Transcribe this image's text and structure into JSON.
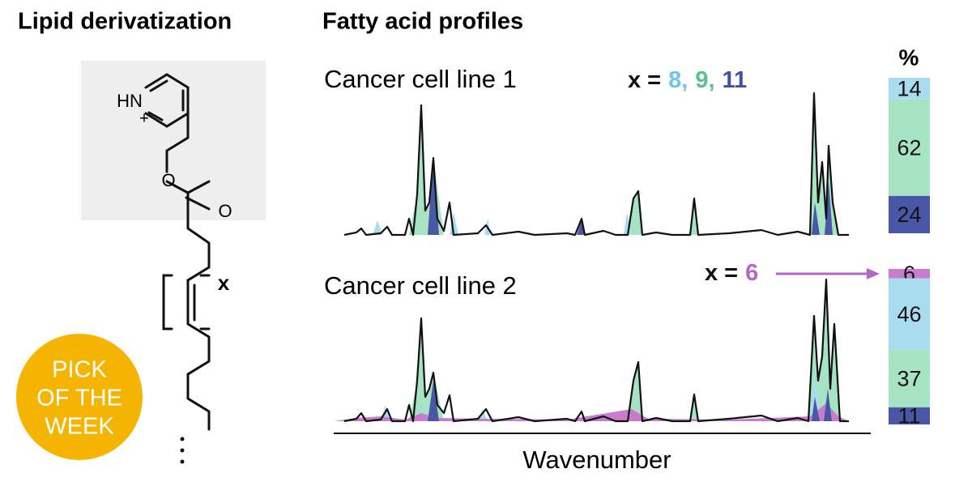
{
  "titles": {
    "left": "Lipid derivatization",
    "right": "Fatty acid profiles"
  },
  "structure": {
    "hn": "HN",
    "plus": "+",
    "o1": "O",
    "o2": "O",
    "x": "x"
  },
  "badge": [
    "PICK",
    "OF THE",
    "WEEK"
  ],
  "profiles": [
    {
      "label": "Cancer cell line 1",
      "annotation": {
        "prefix": "x =",
        "values": [
          {
            "label": "8,",
            "color": "#6ec6e6"
          },
          {
            "label": "9,",
            "color": "#5bbf8f"
          },
          {
            "label": "11",
            "color": "#3f51a0"
          }
        ]
      }
    },
    {
      "label": "Cancer cell line 2",
      "annotation": {
        "prefix": "x =",
        "values": [
          {
            "label": "6",
            "color": "#b565c9"
          }
        ]
      }
    }
  ],
  "percent_label": "%",
  "x_axis_label": "Wavenumber",
  "bars": [
    {
      "segments": [
        {
          "value": 14,
          "color": "#a8dcee"
        },
        {
          "value": 62,
          "color": "#a6e3c2"
        },
        {
          "value": 24,
          "color": "#4957a6"
        }
      ]
    },
    {
      "segments": [
        {
          "value": 6,
          "color": "#c77dcc"
        },
        {
          "value": 46,
          "color": "#a8dcee"
        },
        {
          "value": 37,
          "color": "#a6e3c2"
        },
        {
          "value": 11,
          "color": "#4957a6"
        }
      ]
    }
  ]
}
